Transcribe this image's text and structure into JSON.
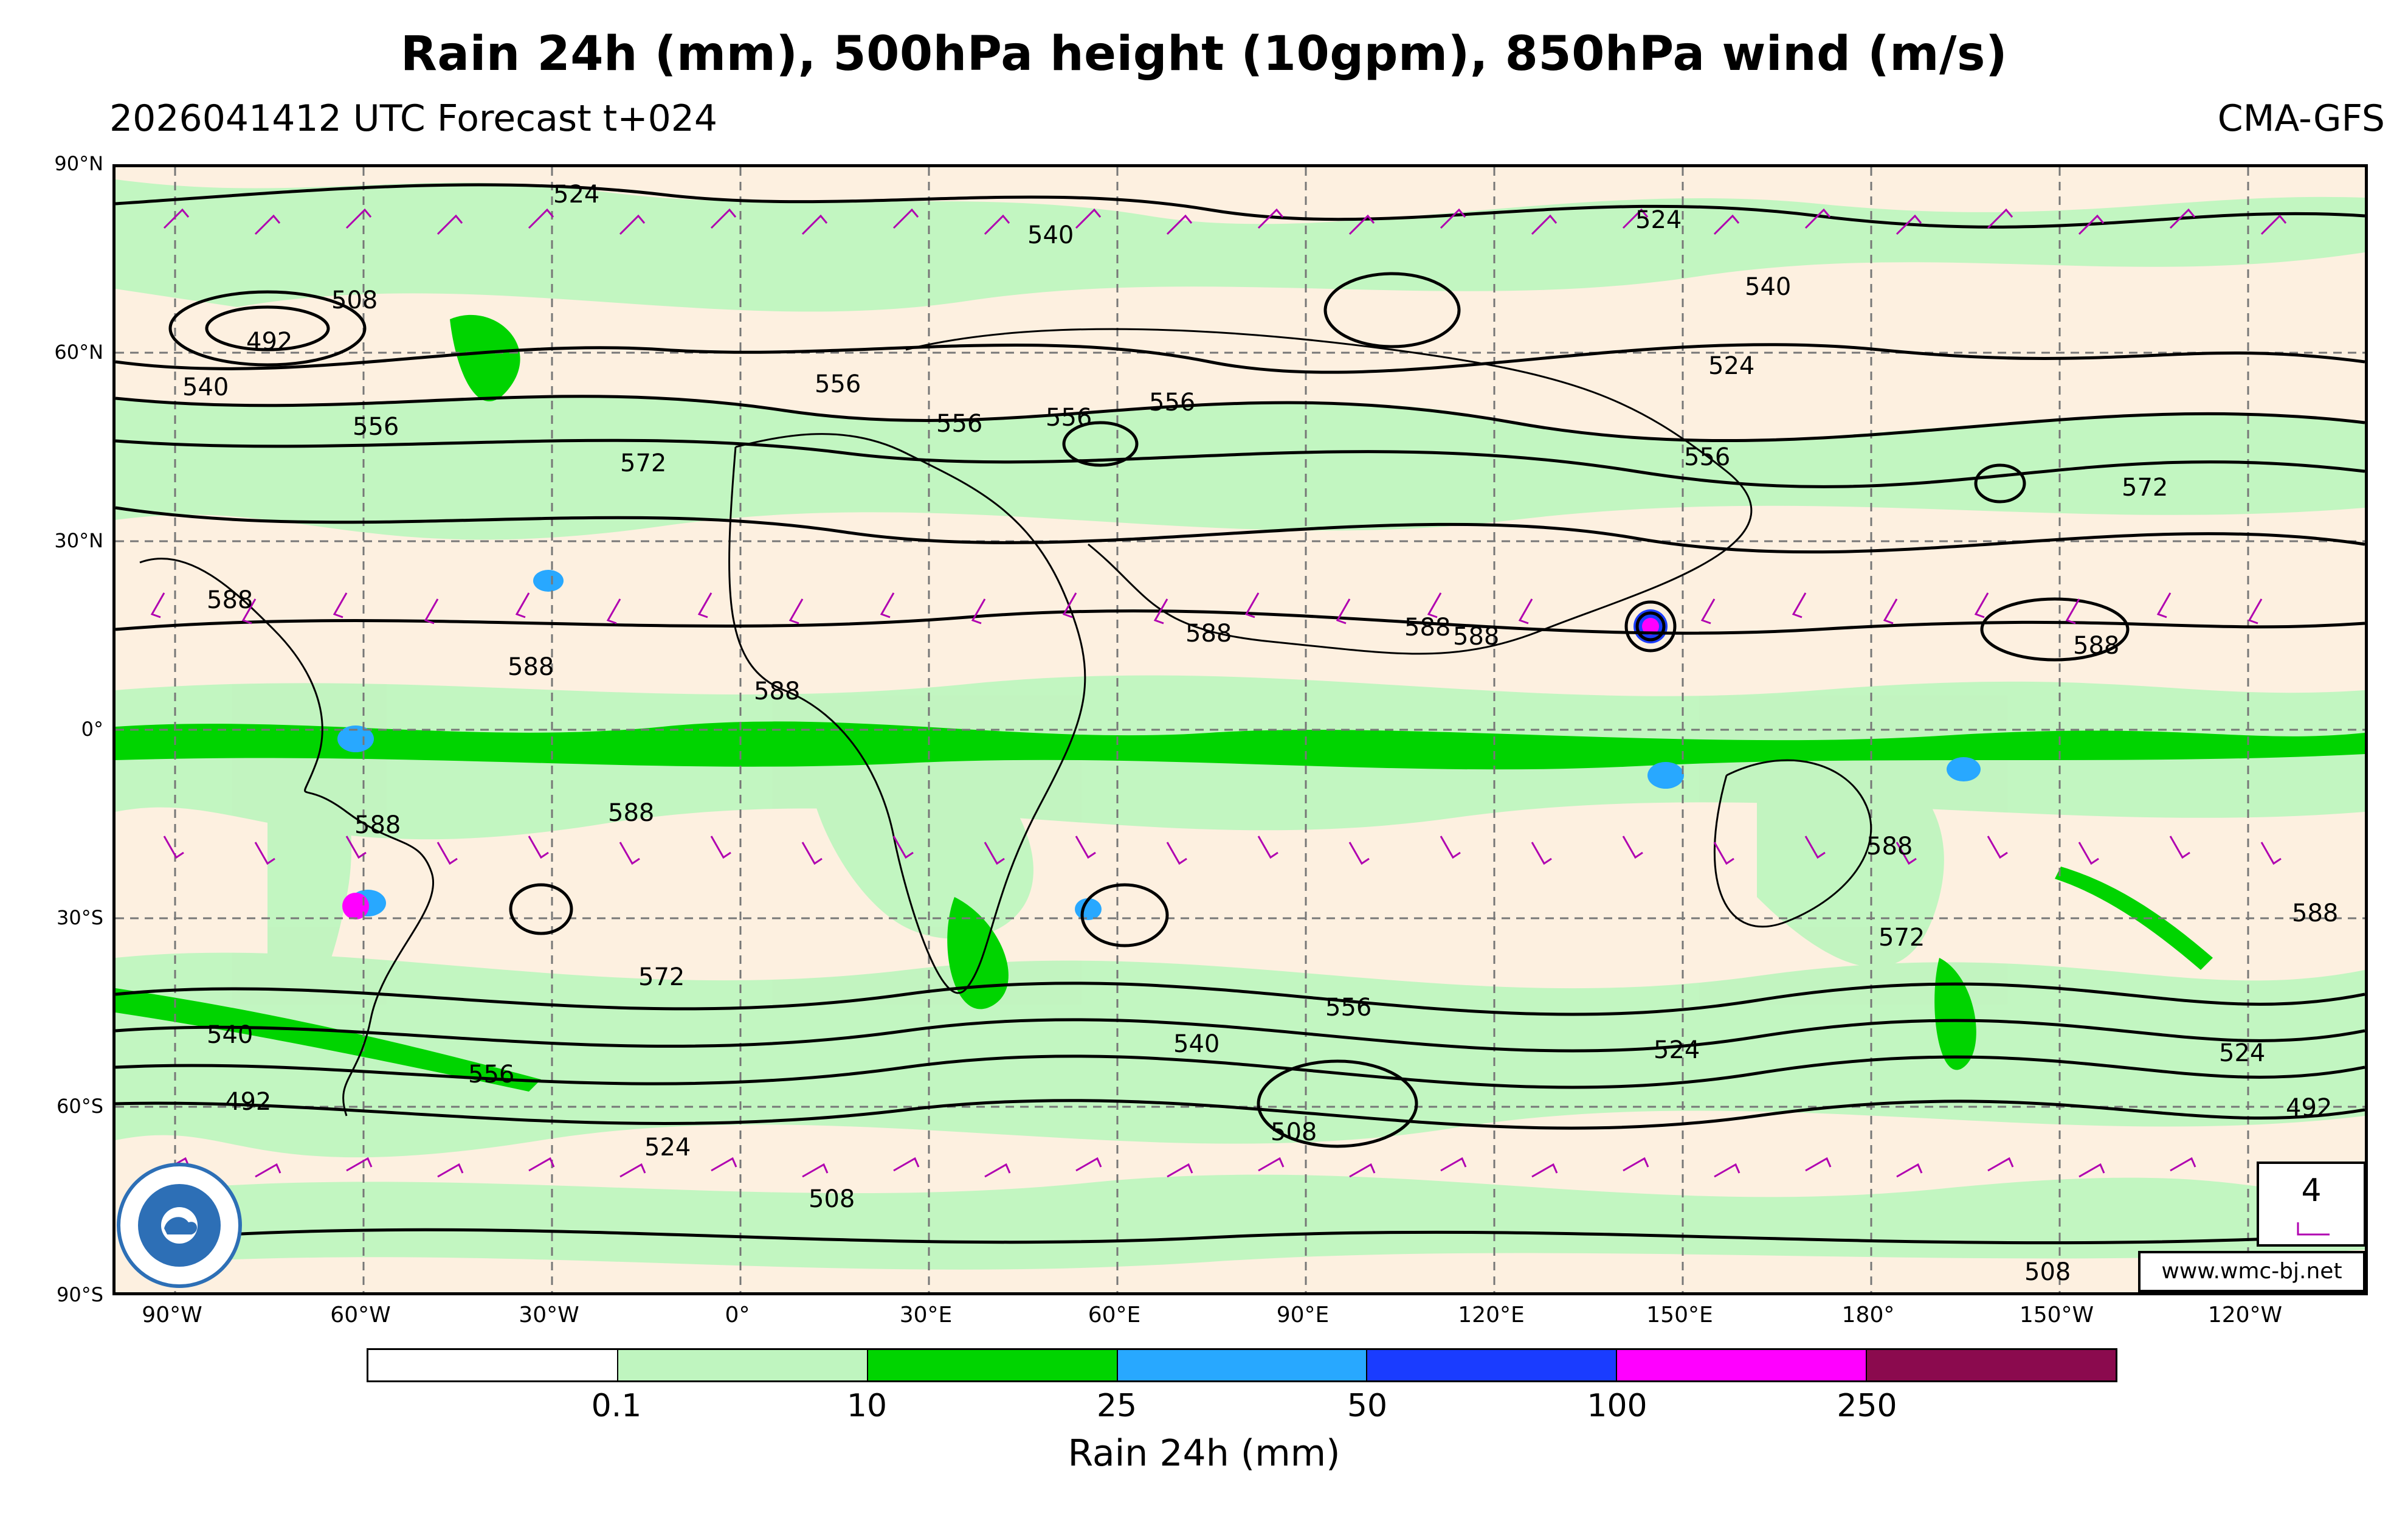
{
  "header": {
    "title": "Rain 24h (mm), 500hPa height (10gpm), 850hPa wind (m/s)",
    "subtitle": "2026041412 UTC Forecast t+024",
    "model": "CMA-GFS"
  },
  "axes": {
    "lat_labels": [
      "90°N",
      "60°N",
      "30°N",
      "0°",
      "30°S",
      "60°S",
      "90°S"
    ],
    "lon_labels": [
      "90°W",
      "60°W",
      "30°W",
      "0°",
      "30°E",
      "60°E",
      "90°E",
      "120°E",
      "150°E",
      "180°",
      "150°W",
      "120°W"
    ]
  },
  "contour_labels": [
    "524",
    "540",
    "508",
    "492",
    "540",
    "556",
    "556",
    "556",
    "572",
    "556",
    "524",
    "540",
    "524",
    "556",
    "572",
    "588",
    "588",
    "588",
    "588",
    "588",
    "588",
    "588",
    "588",
    "588",
    "588",
    "572",
    "572",
    "556",
    "540",
    "524",
    "508",
    "540",
    "492",
    "556",
    "524",
    "508",
    "524",
    "492",
    "508",
    "588",
    "556"
  ],
  "colorbar": {
    "label": "Rain 24h (mm)",
    "ticks": [
      "0.1",
      "10",
      "25",
      "50",
      "100",
      "250"
    ],
    "colors": [
      "#ffffff",
      "#bff5bf",
      "#00d400",
      "#28a8ff",
      "#1a3cff",
      "#ff00ff",
      "#8b0a4e"
    ]
  },
  "legend": {
    "barb_speed": "4"
  },
  "credit": "www.wmc-bj.net",
  "colors": {
    "land": "#fdf0e0",
    "light_rain": "#bff5bf",
    "moderate_rain": "#00d400",
    "heavy_rain": "#28a8ff",
    "wind_barbs": "#b000b0"
  }
}
